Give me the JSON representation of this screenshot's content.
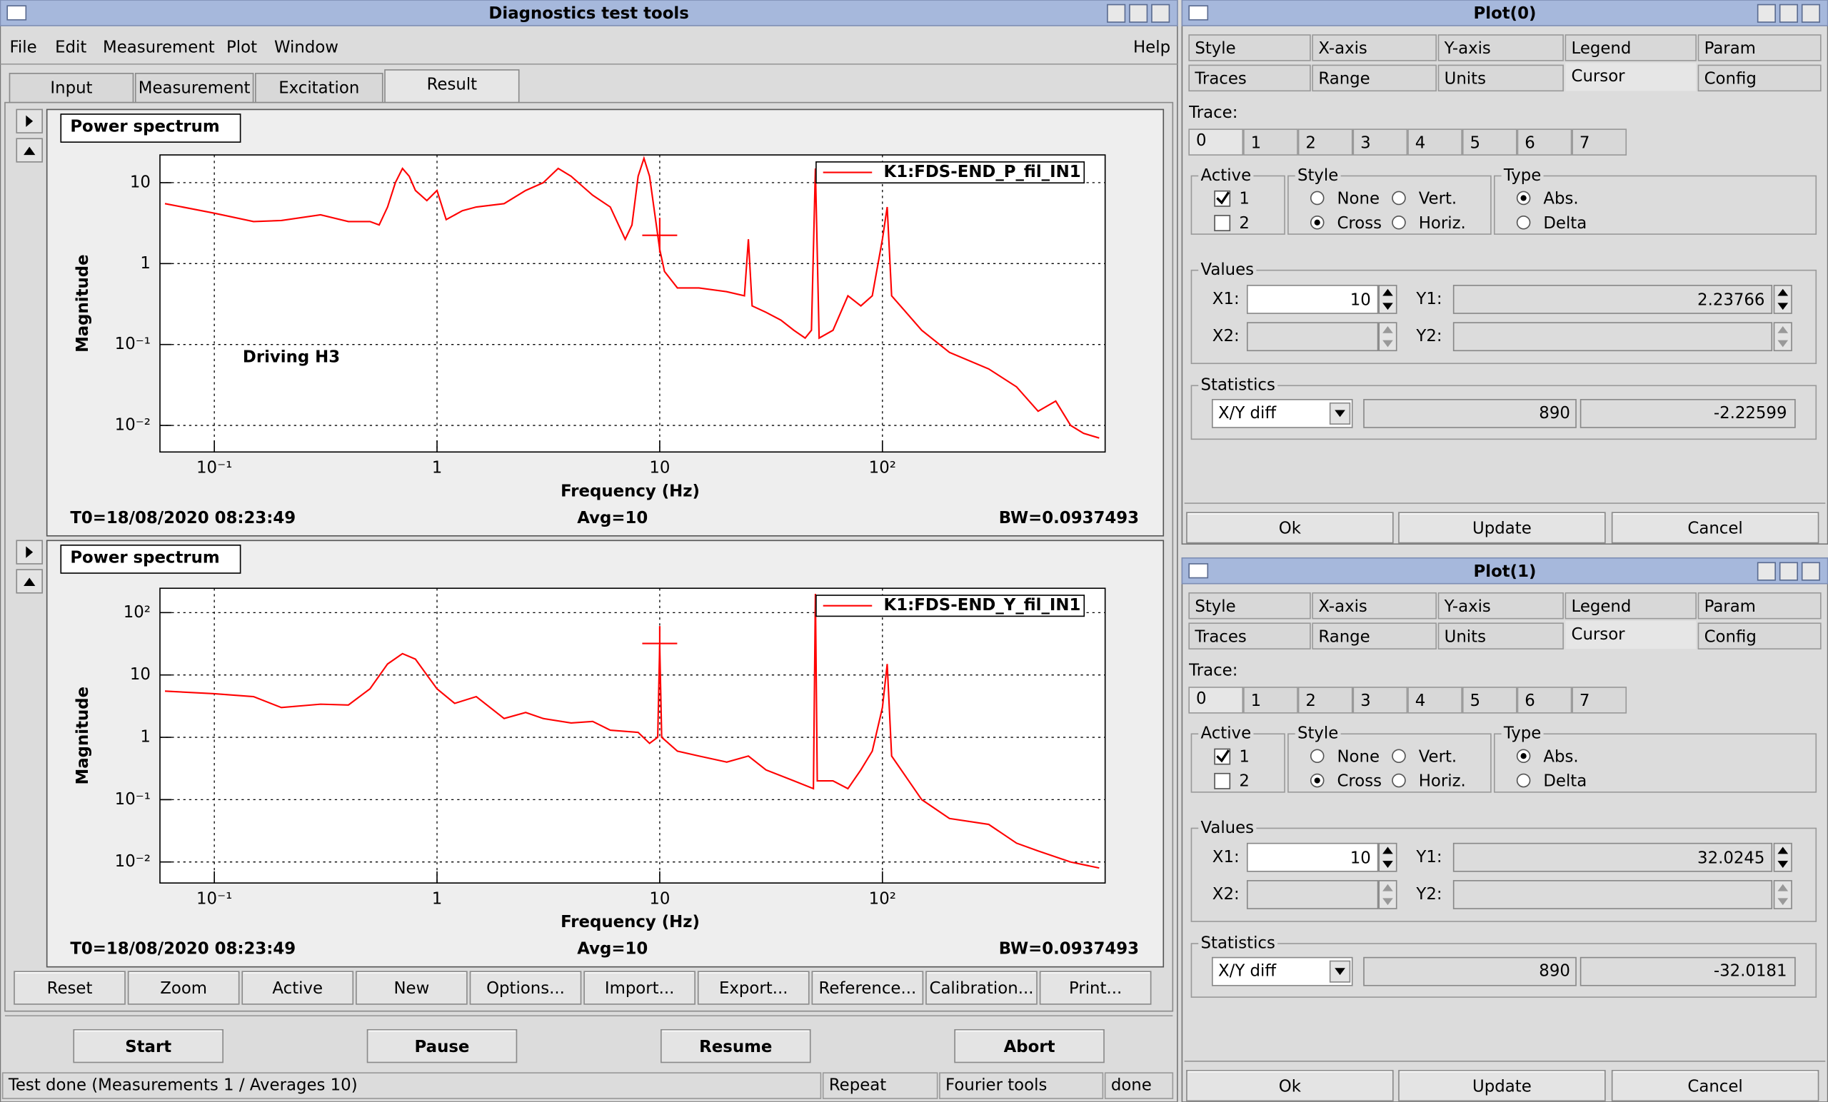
{
  "main_window": {
    "title": "Diagnostics test tools",
    "menu": [
      "File",
      "Edit",
      "Measurement",
      "Plot",
      "Window"
    ],
    "help": "Help",
    "tabs": [
      "Input",
      "Measurement",
      "Excitation",
      "Result"
    ],
    "selected_tab": "Result",
    "buttons": [
      "Reset",
      "Zoom",
      "Active",
      "New",
      "Options...",
      "Import...",
      "Export...",
      "Reference...",
      "Calibration...",
      "Print..."
    ],
    "controls": [
      "Start",
      "Pause",
      "Resume",
      "Abort"
    ],
    "enabled_controls": [
      "Start"
    ],
    "status": [
      "Test done (Measurements 1 / Averages 10)",
      "Repeat",
      "Fourier tools",
      "done"
    ]
  },
  "chart_data": [
    {
      "type": "line",
      "title": "Power spectrum",
      "xlabel": "Frequency (Hz)",
      "ylabel": "Magnitude",
      "annotation": "Driving H3",
      "log_x": true,
      "log_y": true,
      "grid": true,
      "legend": "top-right",
      "xlim": [
        0.057,
        1000
      ],
      "ylim": [
        0.0047,
        22
      ],
      "xticks": [
        {
          "value": 0.1,
          "label": "10⁻¹"
        },
        1,
        10,
        {
          "value": 100,
          "label": "10²"
        }
      ],
      "yticks": [
        {
          "value": 0.01,
          "label": "10⁻²"
        },
        {
          "value": 0.1,
          "label": "10⁻¹"
        },
        1,
        10
      ],
      "x": [
        0.06,
        0.1,
        0.15,
        0.2,
        0.3,
        0.4,
        0.5,
        0.55,
        0.6,
        0.65,
        0.7,
        0.75,
        0.8,
        0.9,
        1,
        1.1,
        1.3,
        1.5,
        2,
        2.5,
        3,
        3.5,
        4,
        4.5,
        5,
        6,
        7,
        7.5,
        8,
        8.5,
        9,
        10,
        10.5,
        12,
        15,
        20,
        24,
        25,
        26,
        30,
        35,
        40,
        45,
        48,
        50,
        52,
        60,
        70,
        80,
        90,
        100,
        105,
        110,
        150,
        200,
        300,
        400,
        500,
        600,
        700,
        800,
        940
      ],
      "series": [
        {
          "name": "K1:FDS-END_P_fil_IN1",
          "color": "#ff0000",
          "values": [
            5.5,
            4.2,
            3.3,
            3.4,
            4,
            3.3,
            3.3,
            3,
            5,
            10,
            15,
            12,
            8,
            6,
            8,
            3.5,
            4.5,
            5,
            5.5,
            8,
            10,
            15,
            12,
            9,
            7,
            5,
            2,
            3,
            12,
            20,
            12,
            1.5,
            0.8,
            0.5,
            0.5,
            0.45,
            0.4,
            2,
            0.3,
            0.25,
            0.2,
            0.15,
            0.12,
            0.15,
            15,
            0.12,
            0.15,
            0.4,
            0.3,
            0.4,
            2,
            5,
            0.4,
            0.15,
            0.08,
            0.05,
            0.03,
            0.015,
            0.02,
            0.01,
            0.008,
            0.007
          ]
        }
      ],
      "footer": {
        "t0": "T0=18/08/2020 08:23:49",
        "avg": "Avg=10",
        "bw": "BW=0.0937493"
      }
    },
    {
      "type": "line",
      "title": "Power spectrum",
      "xlabel": "Frequency (Hz)",
      "ylabel": "Magnitude",
      "log_x": true,
      "log_y": true,
      "grid": true,
      "legend": "top-right",
      "xlim": [
        0.057,
        1000
      ],
      "ylim": [
        0.0046,
        246
      ],
      "xticks": [
        {
          "value": 0.1,
          "label": "10⁻¹"
        },
        1,
        10,
        {
          "value": 100,
          "label": "10²"
        }
      ],
      "yticks": [
        {
          "value": 0.01,
          "label": "10⁻²"
        },
        {
          "value": 0.1,
          "label": "10⁻¹"
        },
        1,
        10,
        {
          "value": 100,
          "label": "10²"
        }
      ],
      "x": [
        0.06,
        0.1,
        0.15,
        0.2,
        0.3,
        0.4,
        0.5,
        0.6,
        0.7,
        0.8,
        0.9,
        1,
        1.2,
        1.5,
        2,
        2.5,
        3,
        4,
        5,
        6,
        8,
        9,
        9.8,
        10,
        10.2,
        12,
        15,
        20,
        25,
        30,
        40,
        49,
        50,
        51,
        60,
        70,
        80,
        90,
        100,
        105,
        110,
        150,
        200,
        300,
        400,
        500,
        700,
        940
      ],
      "series": [
        {
          "name": "K1:FDS-END_Y_fil_IN1",
          "color": "#ff0000",
          "values": [
            5.5,
            5,
            4.5,
            3,
            3.4,
            3.3,
            6,
            15,
            22,
            18,
            10,
            6,
            3.5,
            4.5,
            2,
            2.5,
            2,
            1.7,
            1.8,
            1.3,
            1.2,
            0.8,
            1,
            30,
            1,
            0.6,
            0.5,
            0.4,
            0.5,
            0.3,
            0.2,
            0.15,
            200,
            0.2,
            0.2,
            0.15,
            0.3,
            0.6,
            3,
            15,
            0.5,
            0.1,
            0.05,
            0.04,
            0.02,
            0.015,
            0.01,
            0.008
          ]
        }
      ],
      "footer": {
        "t0": "T0=18/08/2020 08:23:49",
        "avg": "Avg=10",
        "bw": "BW=0.0937493"
      }
    }
  ],
  "plot_dialogs": [
    {
      "title": "Plot(0)",
      "tabs_row1": [
        "Style",
        "X-axis",
        "Y-axis",
        "Legend",
        "Param"
      ],
      "tabs_row2": [
        "Traces",
        "Range",
        "Units",
        "Cursor",
        "Config"
      ],
      "selected_tab": "Cursor",
      "trace_label": "Trace:",
      "traces": [
        "0",
        "1",
        "2",
        "3",
        "4",
        "5",
        "6",
        "7"
      ],
      "active": {
        "label": "Active",
        "items": [
          "1",
          "2"
        ],
        "checked": [
          true,
          false
        ]
      },
      "style": {
        "label": "Style",
        "items": [
          "None",
          "Vert.",
          "Cross",
          "Horiz."
        ],
        "selected": "Cross"
      },
      "type": {
        "label": "Type",
        "items": [
          "Abs.",
          "Delta"
        ],
        "selected": "Abs."
      },
      "values": {
        "label": "Values",
        "x1_label": "X1:",
        "x1": 10,
        "y1_label": "Y1:",
        "y1": 2.23766,
        "x2_label": "X2:",
        "y2_label": "Y2:"
      },
      "statistics": {
        "label": "Statistics",
        "mode": "X/Y diff",
        "dx": 890,
        "dy": -2.22599
      },
      "buttons": [
        "Ok",
        "Update",
        "Cancel"
      ]
    },
    {
      "title": "Plot(1)",
      "tabs_row1": [
        "Style",
        "X-axis",
        "Y-axis",
        "Legend",
        "Param"
      ],
      "tabs_row2": [
        "Traces",
        "Range",
        "Units",
        "Cursor",
        "Config"
      ],
      "selected_tab": "Cursor",
      "trace_label": "Trace:",
      "traces": [
        "0",
        "1",
        "2",
        "3",
        "4",
        "5",
        "6",
        "7"
      ],
      "active": {
        "label": "Active",
        "items": [
          "1",
          "2"
        ],
        "checked": [
          true,
          false
        ]
      },
      "style": {
        "label": "Style",
        "items": [
          "None",
          "Vert.",
          "Cross",
          "Horiz."
        ],
        "selected": "Cross"
      },
      "type": {
        "label": "Type",
        "items": [
          "Abs.",
          "Delta"
        ],
        "selected": "Abs."
      },
      "values": {
        "label": "Values",
        "x1_label": "X1:",
        "x1": 10,
        "y1_label": "Y1:",
        "y1": 32.0245,
        "x2_label": "X2:",
        "y2_label": "Y2:"
      },
      "statistics": {
        "label": "Statistics",
        "mode": "X/Y diff",
        "dx": 890,
        "dy": -32.0181
      },
      "buttons": [
        "Ok",
        "Update",
        "Cancel"
      ]
    }
  ]
}
